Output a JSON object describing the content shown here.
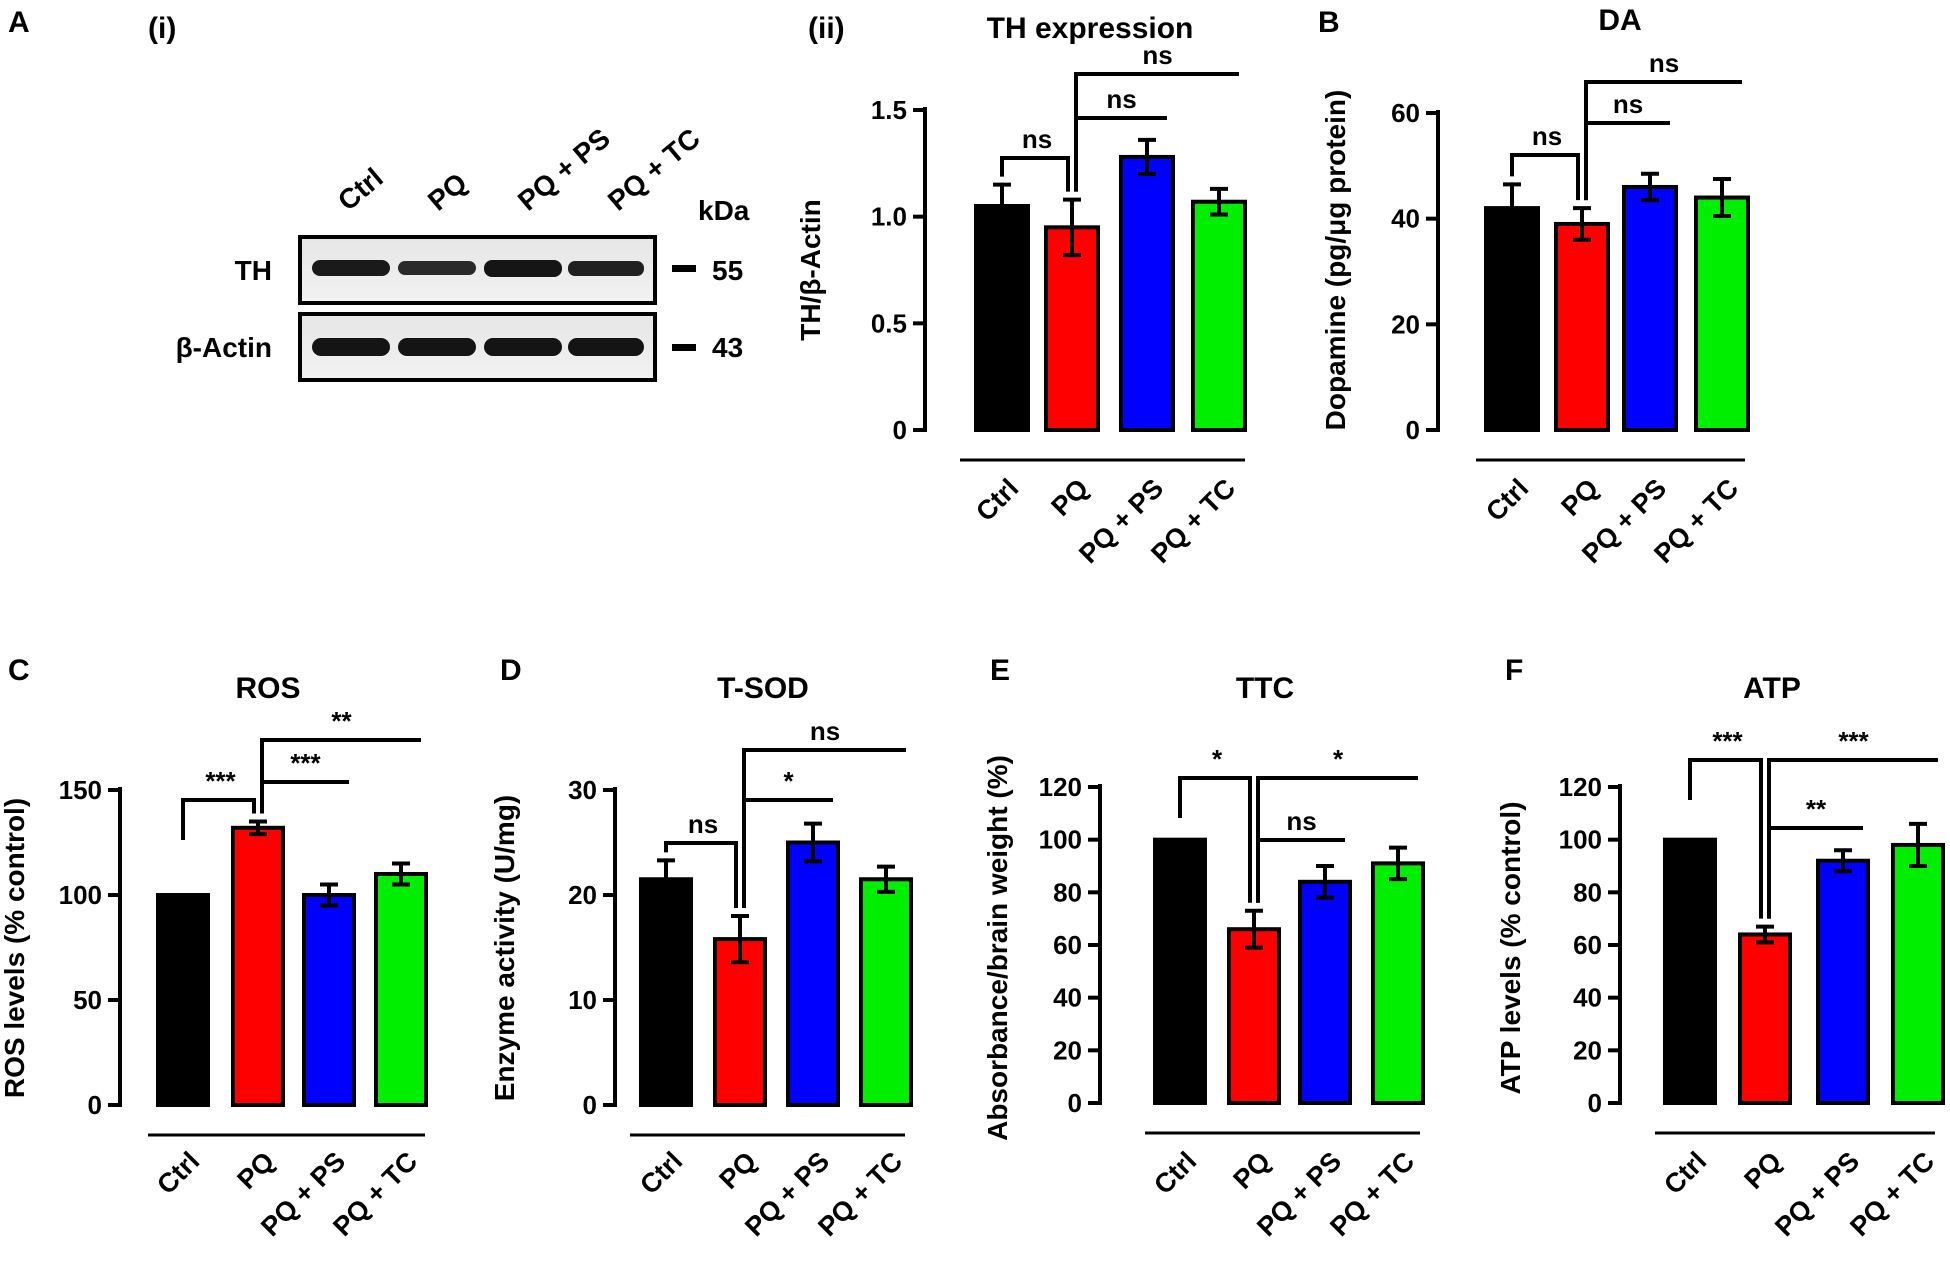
{
  "panel_labels": {
    "a": "A",
    "a_i": "(i)",
    "a_ii": "(ii)",
    "b": "B",
    "c": "C",
    "d": "D",
    "e": "E",
    "f": "F"
  },
  "colors": {
    "Ctrl": "#000000",
    "PQ": "#ff0000",
    "PQ + PS": "#0000ff",
    "PQ + TC": "#00ee00"
  },
  "western_blot": {
    "lanes": [
      "Ctrl",
      "PQ",
      "PQ + PS",
      "PQ + TC"
    ],
    "kda_label": "kDa",
    "rows": [
      {
        "protein": "TH",
        "kda": "55"
      },
      {
        "protein": "β-Actin",
        "kda": "43"
      }
    ]
  },
  "chart_data": [
    {
      "id": "th",
      "type": "bar",
      "title": "TH expression",
      "ylabel": "TH/β-Actin",
      "categories": [
        "Ctrl",
        "PQ",
        "PQ + PS",
        "PQ + TC"
      ],
      "values": [
        1.05,
        0.95,
        1.28,
        1.07
      ],
      "errors": [
        0.1,
        0.13,
        0.08,
        0.06
      ],
      "ylim": [
        0,
        1.5
      ],
      "yticks": [
        "0",
        "0.5",
        "1.0",
        "1.5"
      ],
      "significance": [
        {
          "from": "Ctrl",
          "to": "PQ",
          "label": "ns"
        },
        {
          "from": "PQ",
          "to": "PQ + PS",
          "label": "ns"
        },
        {
          "from": "PQ",
          "to": "PQ + TC",
          "label": "ns"
        }
      ]
    },
    {
      "id": "da",
      "type": "bar",
      "title": "DA",
      "ylabel": "Dopamine (pg/μg protein)",
      "categories": [
        "Ctrl",
        "PQ",
        "PQ + PS",
        "PQ + TC"
      ],
      "values": [
        42,
        39,
        46,
        44
      ],
      "errors": [
        4.5,
        3,
        2.5,
        3.5
      ],
      "ylim": [
        0,
        60
      ],
      "yticks": [
        "0",
        "20",
        "40",
        "60"
      ],
      "significance": [
        {
          "from": "Ctrl",
          "to": "PQ",
          "label": "ns"
        },
        {
          "from": "PQ",
          "to": "PQ + PS",
          "label": "ns"
        },
        {
          "from": "PQ",
          "to": "PQ + TC",
          "label": "ns"
        }
      ]
    },
    {
      "id": "ros",
      "type": "bar",
      "title": "ROS",
      "ylabel": "ROS levels (% control)",
      "categories": [
        "Ctrl",
        "PQ",
        "PQ + PS",
        "PQ + TC"
      ],
      "values": [
        100,
        132,
        100,
        110
      ],
      "errors": [
        0,
        3,
        5,
        5
      ],
      "ylim": [
        0,
        150
      ],
      "yticks": [
        "0",
        "50",
        "100",
        "150"
      ],
      "significance": [
        {
          "from": "Ctrl",
          "to": "PQ",
          "label": "***"
        },
        {
          "from": "PQ",
          "to": "PQ + PS",
          "label": "***"
        },
        {
          "from": "PQ",
          "to": "PQ + TC",
          "label": "**"
        }
      ]
    },
    {
      "id": "tsod",
      "type": "bar",
      "title": "T-SOD",
      "ylabel": "Enzyme activity (U/mg)",
      "categories": [
        "Ctrl",
        "PQ",
        "PQ + PS",
        "PQ + TC"
      ],
      "values": [
        21.5,
        15.8,
        25,
        21.5
      ],
      "errors": [
        1.8,
        2.2,
        1.8,
        1.2
      ],
      "ylim": [
        0,
        30
      ],
      "yticks": [
        "0",
        "10",
        "20",
        "30"
      ],
      "significance": [
        {
          "from": "Ctrl",
          "to": "PQ",
          "label": "ns"
        },
        {
          "from": "PQ",
          "to": "PQ + PS",
          "label": "*"
        },
        {
          "from": "PQ",
          "to": "PQ + TC",
          "label": "ns"
        }
      ]
    },
    {
      "id": "ttc",
      "type": "bar",
      "title": "TTC",
      "ylabel": "Absorbance/brain weight (%)",
      "categories": [
        "Ctrl",
        "PQ",
        "PQ + PS",
        "PQ + TC"
      ],
      "values": [
        100,
        66,
        84,
        91
      ],
      "errors": [
        0,
        7,
        6,
        6
      ],
      "ylim": [
        0,
        120
      ],
      "yticks": [
        "0",
        "20",
        "40",
        "60",
        "80",
        "100",
        "120"
      ],
      "significance": [
        {
          "from": "Ctrl",
          "to": "PQ",
          "label": "*"
        },
        {
          "from": "PQ",
          "to": "PQ + PS",
          "label": "ns"
        },
        {
          "from": "PQ",
          "to": "PQ + TC",
          "label": "*"
        }
      ]
    },
    {
      "id": "atp",
      "type": "bar",
      "title": "ATP",
      "ylabel": "ATP levels (% control)",
      "categories": [
        "Ctrl",
        "PQ",
        "PQ + PS",
        "PQ + TC"
      ],
      "values": [
        100,
        64,
        92,
        98
      ],
      "errors": [
        0,
        3,
        4,
        8
      ],
      "ylim": [
        0,
        120
      ],
      "yticks": [
        "0",
        "20",
        "40",
        "60",
        "80",
        "100",
        "120"
      ],
      "significance": [
        {
          "from": "Ctrl",
          "to": "PQ",
          "label": "***"
        },
        {
          "from": "PQ",
          "to": "PQ + PS",
          "label": "**"
        },
        {
          "from": "PQ",
          "to": "PQ + TC",
          "label": "***"
        }
      ]
    }
  ]
}
